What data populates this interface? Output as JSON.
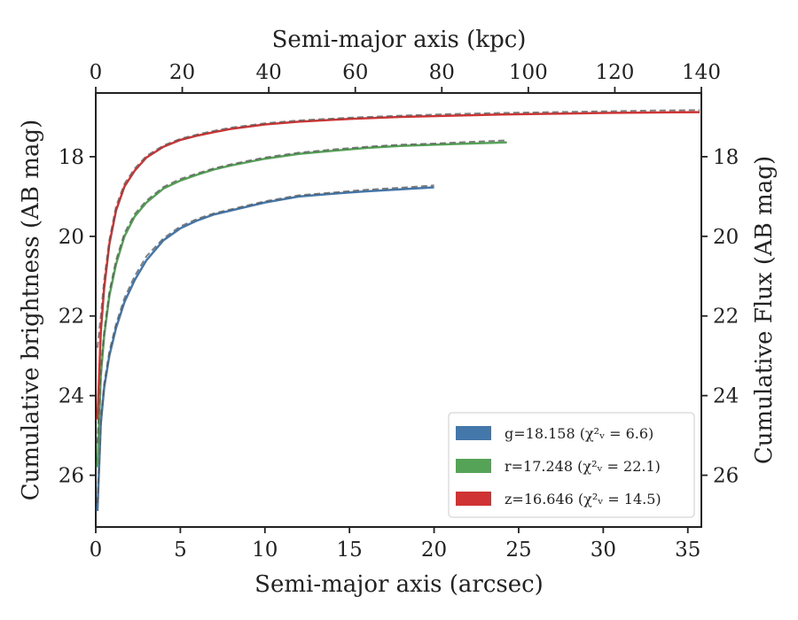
{
  "chart_data": {
    "type": "line",
    "xlabel": "Semi-major axis (arcsec)",
    "ylabel": "Cumulative brightness (AB mag)",
    "x2label": "Semi-major axis (kpc)",
    "y2label": "Cumulative Flux (AB mag)",
    "xlim": [
      0,
      35.8
    ],
    "ylim": [
      27.3,
      16.4
    ],
    "x2lim": [
      0,
      140
    ],
    "xticks": [
      0,
      5,
      10,
      15,
      20,
      25,
      30,
      35
    ],
    "yticks": [
      18,
      20,
      22,
      24,
      26
    ],
    "x2ticks": [
      0,
      20,
      40,
      60,
      80,
      100,
      120,
      140
    ],
    "y2ticks": [
      18,
      20,
      22,
      24,
      26
    ],
    "y_inverted": true,
    "grid": false,
    "legend_position": "lower-right",
    "series": [
      {
        "name": "g",
        "legend_label": "g=18.158 (χ²ᵥ = 6.6)",
        "color": "#4477aa",
        "x": [
          0.1,
          0.3,
          0.5,
          0.8,
          1.2,
          1.7,
          2.3,
          3.0,
          4.0,
          5.0,
          6.0,
          7.0,
          8.0,
          10.0,
          12.0,
          14.0,
          16.0,
          18.0,
          20.0
        ],
        "y": [
          26.9,
          24.7,
          23.8,
          23.0,
          22.3,
          21.65,
          21.1,
          20.6,
          20.1,
          19.8,
          19.6,
          19.45,
          19.35,
          19.15,
          19.0,
          18.93,
          18.87,
          18.82,
          18.77
        ],
        "model_x": [
          0.1,
          0.3,
          0.5,
          0.8,
          1.2,
          1.7,
          2.3,
          3.0,
          4.0,
          5.0,
          6.0,
          7.0,
          8.0,
          10.0,
          12.0,
          14.0,
          16.0,
          18.0,
          20.0
        ],
        "model_y": [
          26.7,
          24.6,
          23.7,
          22.9,
          22.2,
          21.55,
          21.0,
          20.5,
          20.05,
          19.75,
          19.56,
          19.42,
          19.32,
          19.12,
          18.97,
          18.9,
          18.83,
          18.78,
          18.72
        ]
      },
      {
        "name": "r",
        "legend_label": "r=17.248 (χ²ᵥ = 22.1)",
        "color": "#55a357",
        "x": [
          0.1,
          0.3,
          0.5,
          0.8,
          1.2,
          1.7,
          2.3,
          3.0,
          4.0,
          5.0,
          6.0,
          7.0,
          8.0,
          10.0,
          12.0,
          14.0,
          16.0,
          18.0,
          20.0,
          22.0,
          24.3
        ],
        "y": [
          25.8,
          23.5,
          22.5,
          21.5,
          20.7,
          20.0,
          19.5,
          19.15,
          18.8,
          18.6,
          18.45,
          18.32,
          18.22,
          18.05,
          17.93,
          17.85,
          17.78,
          17.73,
          17.7,
          17.67,
          17.64
        ],
        "model_x": [
          0.1,
          0.3,
          0.5,
          0.8,
          1.2,
          1.7,
          2.3,
          3.0,
          4.0,
          5.0,
          6.0,
          7.0,
          8.0,
          10.0,
          12.0,
          14.0,
          16.0,
          18.0,
          20.0,
          22.0,
          24.3
        ],
        "model_y": [
          25.2,
          23.3,
          22.4,
          21.4,
          20.6,
          19.92,
          19.44,
          19.1,
          18.76,
          18.56,
          18.42,
          18.29,
          18.19,
          18.02,
          17.9,
          17.82,
          17.75,
          17.7,
          17.67,
          17.63,
          17.59
        ]
      },
      {
        "name": "z",
        "legend_label": "z=16.646 (χ²ᵥ = 14.5)",
        "color": "#d03333",
        "x": [
          0.1,
          0.3,
          0.5,
          0.8,
          1.2,
          1.7,
          2.3,
          3.0,
          4.0,
          5.0,
          6.0,
          7.0,
          8.0,
          10.0,
          12.0,
          15.0,
          18.0,
          21.0,
          24.0,
          27.0,
          30.0,
          33.0,
          35.7
        ],
        "y": [
          24.6,
          22.4,
          21.3,
          20.2,
          19.35,
          18.75,
          18.35,
          18.02,
          17.75,
          17.58,
          17.47,
          17.38,
          17.3,
          17.19,
          17.12,
          17.05,
          17.0,
          16.97,
          16.94,
          16.92,
          16.9,
          16.89,
          16.88
        ],
        "model_x": [
          0.1,
          0.3,
          0.5,
          0.8,
          1.2,
          1.7,
          2.3,
          3.0,
          4.0,
          5.0,
          6.0,
          7.0,
          8.0,
          10.0,
          12.0,
          15.0,
          18.0,
          21.0,
          24.0,
          27.0,
          30.0,
          33.0,
          35.7
        ],
        "model_y": [
          22.8,
          22.0,
          21.1,
          20.1,
          19.25,
          18.68,
          18.3,
          17.98,
          17.72,
          17.55,
          17.44,
          17.35,
          17.27,
          17.16,
          17.09,
          17.02,
          16.97,
          16.93,
          16.9,
          16.88,
          16.86,
          16.84,
          16.83
        ]
      }
    ]
  }
}
